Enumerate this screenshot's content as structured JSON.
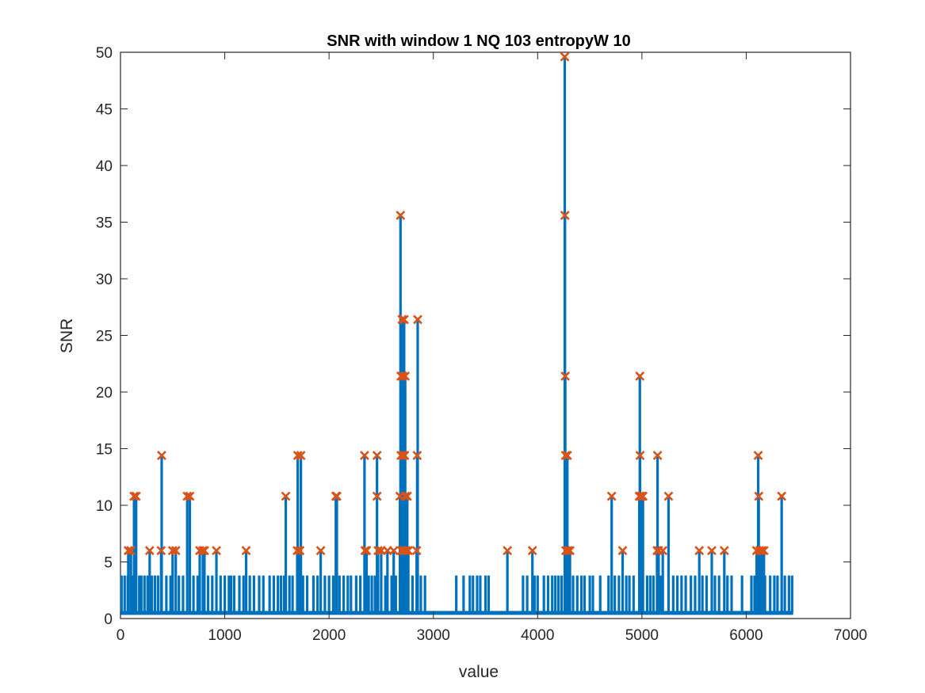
{
  "chart_data": {
    "type": "line",
    "title": "SNR with window 1  NQ 103  entropyW 10",
    "xlabel": "value",
    "ylabel": "SNR",
    "xlim": [
      0,
      7000
    ],
    "ylim": [
      0,
      50
    ],
    "xticks": [
      0,
      1000,
      2000,
      3000,
      4000,
      5000,
      6000,
      7000
    ],
    "yticks": [
      0,
      5,
      10,
      15,
      20,
      25,
      30,
      35,
      40,
      45,
      50
    ],
    "xtick_labels": [
      "0",
      "1000",
      "2000",
      "3000",
      "4000",
      "5000",
      "6000",
      "7000"
    ],
    "ytick_labels": [
      "0",
      "5",
      "10",
      "15",
      "20",
      "25",
      "30",
      "35",
      "40",
      "45",
      "50"
    ],
    "grid": false,
    "colors": {
      "line": "#0072BD",
      "markers": "#D95319",
      "axes": "#262626"
    },
    "baseline": 0.5,
    "small_spikes": [
      [
        10,
        3.8
      ],
      [
        40,
        3.8
      ],
      [
        70,
        3.8
      ],
      [
        110,
        3.8
      ],
      [
        150,
        3.8
      ],
      [
        180,
        3.8
      ],
      [
        200,
        3.8
      ],
      [
        230,
        3.8
      ],
      [
        260,
        3.8
      ],
      [
        300,
        3.8
      ],
      [
        330,
        3.8
      ],
      [
        360,
        3.8
      ],
      [
        440,
        3.8
      ],
      [
        480,
        3.8
      ],
      [
        560,
        3.8
      ],
      [
        600,
        3.8
      ],
      [
        700,
        3.8
      ],
      [
        740,
        3.8
      ],
      [
        840,
        3.8
      ],
      [
        880,
        3.8
      ],
      [
        960,
        3.8
      ],
      [
        1000,
        3.8
      ],
      [
        1040,
        3.8
      ],
      [
        1060,
        3.8
      ],
      [
        1090,
        3.8
      ],
      [
        1140,
        3.8
      ],
      [
        1180,
        3.8
      ],
      [
        1240,
        3.8
      ],
      [
        1280,
        3.8
      ],
      [
        1330,
        3.8
      ],
      [
        1370,
        3.8
      ],
      [
        1430,
        3.8
      ],
      [
        1470,
        3.8
      ],
      [
        1510,
        3.8
      ],
      [
        1540,
        3.8
      ],
      [
        1570,
        3.8
      ],
      [
        1620,
        3.8
      ],
      [
        1650,
        3.8
      ],
      [
        1750,
        3.8
      ],
      [
        1790,
        3.8
      ],
      [
        1850,
        3.8
      ],
      [
        1890,
        3.8
      ],
      [
        1960,
        3.8
      ],
      [
        2000,
        3.8
      ],
      [
        2040,
        3.8
      ],
      [
        2100,
        3.8
      ],
      [
        2140,
        3.8
      ],
      [
        2180,
        3.8
      ],
      [
        2210,
        3.8
      ],
      [
        2260,
        3.8
      ],
      [
        2300,
        3.8
      ],
      [
        2380,
        3.8
      ],
      [
        2410,
        3.8
      ],
      [
        2440,
        3.8
      ],
      [
        2500,
        3.8
      ],
      [
        2540,
        3.8
      ],
      [
        2600,
        3.8
      ],
      [
        2640,
        3.8
      ],
      [
        2760,
        3.8
      ],
      [
        2800,
        3.8
      ],
      [
        2880,
        3.8
      ],
      [
        2920,
        3.8
      ],
      [
        3220,
        3.8
      ],
      [
        3290,
        3.8
      ],
      [
        3350,
        3.8
      ],
      [
        3380,
        3.8
      ],
      [
        3420,
        3.8
      ],
      [
        3450,
        3.8
      ],
      [
        3500,
        3.8
      ],
      [
        3530,
        3.8
      ],
      [
        3860,
        3.8
      ],
      [
        3900,
        3.8
      ],
      [
        3970,
        3.8
      ],
      [
        4000,
        3.8
      ],
      [
        4060,
        3.8
      ],
      [
        4100,
        3.8
      ],
      [
        4140,
        3.8
      ],
      [
        4170,
        3.8
      ],
      [
        4200,
        3.8
      ],
      [
        4230,
        3.8
      ],
      [
        4340,
        3.8
      ],
      [
        4380,
        3.8
      ],
      [
        4420,
        3.8
      ],
      [
        4450,
        3.8
      ],
      [
        4500,
        3.8
      ],
      [
        4530,
        3.8
      ],
      [
        4600,
        3.8
      ],
      [
        4680,
        3.8
      ],
      [
        4740,
        3.8
      ],
      [
        4780,
        3.8
      ],
      [
        4850,
        3.8
      ],
      [
        4880,
        3.8
      ],
      [
        4920,
        3.8
      ],
      [
        5050,
        3.8
      ],
      [
        5080,
        3.8
      ],
      [
        5110,
        3.8
      ],
      [
        5180,
        3.8
      ],
      [
        5300,
        3.8
      ],
      [
        5340,
        3.8
      ],
      [
        5380,
        3.8
      ],
      [
        5420,
        3.8
      ],
      [
        5470,
        3.8
      ],
      [
        5510,
        3.8
      ],
      [
        5580,
        3.8
      ],
      [
        5620,
        3.8
      ],
      [
        5700,
        3.8
      ],
      [
        5740,
        3.8
      ],
      [
        5820,
        3.8
      ],
      [
        5860,
        3.8
      ],
      [
        5960,
        3.8
      ],
      [
        6050,
        3.8
      ],
      [
        6080,
        3.8
      ],
      [
        6180,
        3.8
      ],
      [
        6230,
        3.8
      ],
      [
        6270,
        3.8
      ],
      [
        6300,
        3.8
      ],
      [
        6370,
        3.8
      ],
      [
        6410,
        3.8
      ],
      [
        6440,
        3.8
      ]
    ],
    "peaks": [
      [
        75,
        6.0
      ],
      [
        100,
        6.0
      ],
      [
        130,
        10.8
      ],
      [
        150,
        10.8
      ],
      [
        280,
        6.0
      ],
      [
        390,
        6.0
      ],
      [
        395,
        14.4
      ],
      [
        500,
        6.0
      ],
      [
        530,
        6.0
      ],
      [
        640,
        10.8
      ],
      [
        665,
        10.8
      ],
      [
        760,
        6.0
      ],
      [
        790,
        6.0
      ],
      [
        805,
        6.0
      ],
      [
        920,
        6.0
      ],
      [
        1205,
        6.0
      ],
      [
        1585,
        10.8
      ],
      [
        1695,
        6.0
      ],
      [
        1700,
        14.4
      ],
      [
        1720,
        6.0
      ],
      [
        1730,
        14.4
      ],
      [
        1920,
        6.0
      ],
      [
        2065,
        10.8
      ],
      [
        2075,
        10.8
      ],
      [
        2340,
        14.4
      ],
      [
        2345,
        6.0
      ],
      [
        2360,
        6.0
      ],
      [
        2460,
        10.8
      ],
      [
        2460,
        14.4
      ],
      [
        2470,
        6.0
      ],
      [
        2500,
        6.0
      ],
      [
        2560,
        6.0
      ],
      [
        2620,
        6.0
      ],
      [
        2680,
        10.8
      ],
      [
        2685,
        35.6
      ],
      [
        2690,
        21.4
      ],
      [
        2690,
        14.4
      ],
      [
        2695,
        6.0
      ],
      [
        2700,
        26.4
      ],
      [
        2705,
        21.4
      ],
      [
        2710,
        14.4
      ],
      [
        2715,
        6.0
      ],
      [
        2720,
        26.4
      ],
      [
        2725,
        14.4
      ],
      [
        2730,
        21.4
      ],
      [
        2730,
        10.8
      ],
      [
        2740,
        6.0
      ],
      [
        2750,
        10.8
      ],
      [
        2760,
        6.0
      ],
      [
        2840,
        6.0
      ],
      [
        2845,
        14.4
      ],
      [
        2850,
        26.4
      ],
      [
        3710,
        6.0
      ],
      [
        3950,
        6.0
      ],
      [
        4260,
        49.6
      ],
      [
        4262,
        35.6
      ],
      [
        4265,
        21.4
      ],
      [
        4268,
        14.4
      ],
      [
        4270,
        6.0
      ],
      [
        4285,
        14.4
      ],
      [
        4290,
        6.0
      ],
      [
        4310,
        6.0
      ],
      [
        4710,
        10.8
      ],
      [
        4815,
        6.0
      ],
      [
        4975,
        10.8
      ],
      [
        4980,
        21.4
      ],
      [
        4982,
        14.4
      ],
      [
        4985,
        10.8
      ],
      [
        5000,
        10.8
      ],
      [
        5010,
        10.8
      ],
      [
        5145,
        6.0
      ],
      [
        5150,
        14.4
      ],
      [
        5160,
        6.0
      ],
      [
        5200,
        6.0
      ],
      [
        5255,
        10.8
      ],
      [
        5550,
        6.0
      ],
      [
        5670,
        6.0
      ],
      [
        5790,
        6.0
      ],
      [
        6100,
        6.0
      ],
      [
        6115,
        14.4
      ],
      [
        6120,
        10.8
      ],
      [
        6130,
        6.0
      ],
      [
        6150,
        6.0
      ],
      [
        6170,
        6.0
      ],
      [
        6340,
        10.8
      ]
    ]
  }
}
